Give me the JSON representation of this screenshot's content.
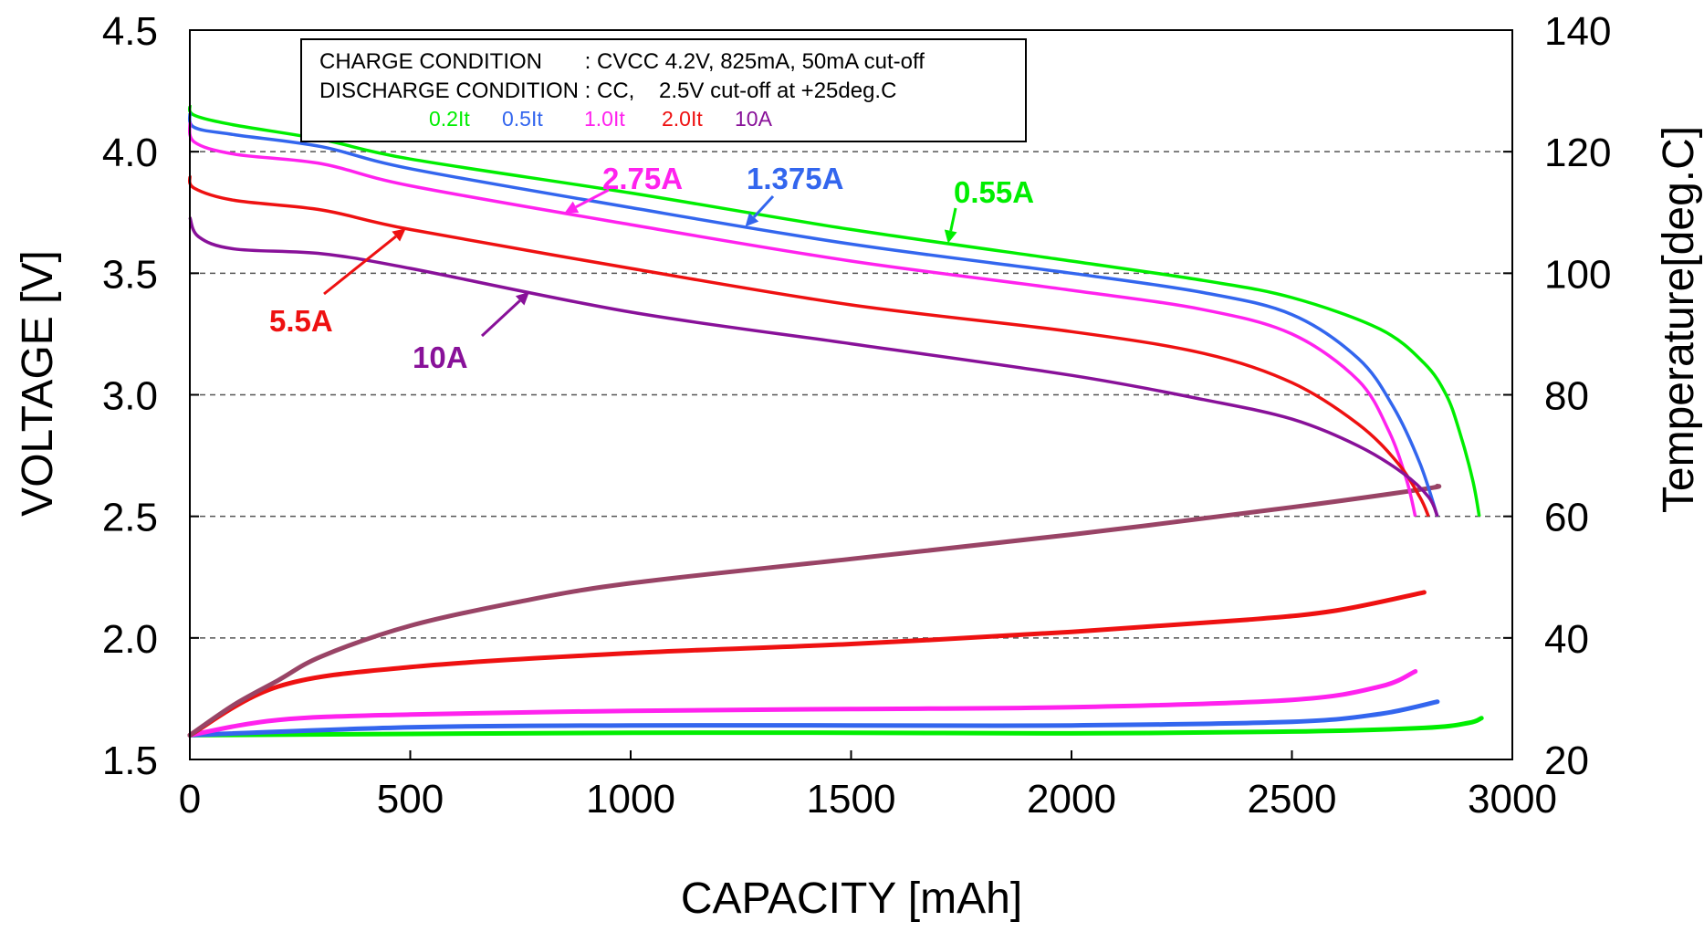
{
  "chart_data": {
    "type": "line",
    "xlabel": "CAPACITY [mAh]",
    "ylabel": "VOLTAGE [V]",
    "y2label": "Temperature[deg.C]",
    "xlim": [
      0,
      3000
    ],
    "ylim": [
      1.5,
      4.5
    ],
    "y2lim": [
      20,
      140
    ],
    "xticks": [
      "0",
      "500",
      "1000",
      "1500",
      "2000",
      "2500",
      "3000"
    ],
    "yticks": [
      "1.5",
      "2.0",
      "2.5",
      "3.0",
      "3.5",
      "4.0",
      "4.5"
    ],
    "y2ticks": [
      "20",
      "40",
      "60",
      "80",
      "100",
      "120",
      "140"
    ],
    "grid": "horizontal dashed",
    "note": {
      "line1": "CHARGE CONDITION       : CVCC 4.2V, 825mA, 50mA cut-off",
      "line2": "DISCHARGE CONDITION : CC,    2.5V cut-off at +25deg.C"
    },
    "legend_placement": "top-left",
    "legend": [
      "0.2It",
      "0.5It",
      "1.0It",
      "2.0It",
      "10A"
    ],
    "annotations": [
      "0.55A",
      "1.375A",
      "2.75A",
      "5.5A",
      "10A"
    ],
    "series": [
      {
        "name": "0.2It",
        "annotation": "0.55A",
        "color": "#00ee00",
        "voltage": [
          [
            0,
            4.19
          ],
          [
            10,
            4.15
          ],
          [
            100,
            4.11
          ],
          [
            300,
            4.05
          ],
          [
            500,
            3.97
          ],
          [
            1000,
            3.83
          ],
          [
            1500,
            3.68
          ],
          [
            2000,
            3.55
          ],
          [
            2300,
            3.47
          ],
          [
            2500,
            3.4
          ],
          [
            2700,
            3.27
          ],
          [
            2800,
            3.13
          ],
          [
            2850,
            3.0
          ],
          [
            2880,
            2.85
          ],
          [
            2910,
            2.65
          ],
          [
            2925,
            2.5
          ]
        ],
        "temperature": [
          [
            0,
            24
          ],
          [
            500,
            24.2
          ],
          [
            1000,
            24.4
          ],
          [
            1500,
            24.4
          ],
          [
            2000,
            24.3
          ],
          [
            2500,
            24.6
          ],
          [
            2800,
            25.2
          ],
          [
            2900,
            26
          ],
          [
            2930,
            26.8
          ]
        ]
      },
      {
        "name": "0.5It",
        "annotation": "1.375A",
        "color": "#3366ee",
        "voltage": [
          [
            0,
            4.16
          ],
          [
            10,
            4.1
          ],
          [
            100,
            4.07
          ],
          [
            300,
            4.02
          ],
          [
            500,
            3.93
          ],
          [
            1000,
            3.77
          ],
          [
            1500,
            3.62
          ],
          [
            2000,
            3.5
          ],
          [
            2300,
            3.42
          ],
          [
            2500,
            3.33
          ],
          [
            2650,
            3.15
          ],
          [
            2730,
            2.95
          ],
          [
            2790,
            2.72
          ],
          [
            2830,
            2.5
          ]
        ],
        "temperature": [
          [
            0,
            24
          ],
          [
            500,
            25.3
          ],
          [
            1000,
            25.6
          ],
          [
            1500,
            25.6
          ],
          [
            2000,
            25.6
          ],
          [
            2500,
            26.2
          ],
          [
            2700,
            27.5
          ],
          [
            2830,
            29.5
          ]
        ]
      },
      {
        "name": "1.0It",
        "annotation": "2.75A",
        "color": "#ff22ee",
        "voltage": [
          [
            0,
            4.12
          ],
          [
            10,
            4.04
          ],
          [
            100,
            3.99
          ],
          [
            300,
            3.95
          ],
          [
            500,
            3.86
          ],
          [
            1000,
            3.7
          ],
          [
            1500,
            3.55
          ],
          [
            2000,
            3.43
          ],
          [
            2300,
            3.35
          ],
          [
            2500,
            3.25
          ],
          [
            2650,
            3.06
          ],
          [
            2720,
            2.85
          ],
          [
            2760,
            2.65
          ],
          [
            2780,
            2.5
          ]
        ],
        "temperature": [
          [
            0,
            24
          ],
          [
            200,
            26.5
          ],
          [
            500,
            27.4
          ],
          [
            1000,
            28
          ],
          [
            1500,
            28.3
          ],
          [
            2000,
            28.6
          ],
          [
            2500,
            29.8
          ],
          [
            2700,
            32
          ],
          [
            2780,
            34.5
          ]
        ]
      },
      {
        "name": "2.0It",
        "annotation": "5.5A",
        "color": "#ee1111",
        "voltage": [
          [
            0,
            3.9
          ],
          [
            10,
            3.85
          ],
          [
            100,
            3.8
          ],
          [
            300,
            3.76
          ],
          [
            500,
            3.68
          ],
          [
            1000,
            3.52
          ],
          [
            1500,
            3.37
          ],
          [
            2000,
            3.26
          ],
          [
            2300,
            3.17
          ],
          [
            2500,
            3.05
          ],
          [
            2650,
            2.88
          ],
          [
            2740,
            2.72
          ],
          [
            2790,
            2.58
          ],
          [
            2810,
            2.5
          ]
        ],
        "temperature": [
          [
            0,
            24
          ],
          [
            200,
            32
          ],
          [
            500,
            35.2
          ],
          [
            1000,
            37.5
          ],
          [
            1500,
            39
          ],
          [
            2000,
            41
          ],
          [
            2400,
            43
          ],
          [
            2600,
            44.5
          ],
          [
            2800,
            47.5
          ]
        ]
      },
      {
        "name": "10A",
        "annotation": "10A",
        "color": "#881199",
        "voltage": [
          [
            0,
            3.73
          ],
          [
            20,
            3.65
          ],
          [
            100,
            3.6
          ],
          [
            300,
            3.58
          ],
          [
            500,
            3.52
          ],
          [
            1000,
            3.34
          ],
          [
            1500,
            3.21
          ],
          [
            2000,
            3.08
          ],
          [
            2300,
            2.98
          ],
          [
            2500,
            2.9
          ],
          [
            2650,
            2.79
          ],
          [
            2750,
            2.68
          ],
          [
            2810,
            2.58
          ],
          [
            2830,
            2.5
          ]
        ],
        "temperature": [
          [
            0,
            24
          ],
          [
            100,
            29
          ],
          [
            200,
            33
          ],
          [
            300,
            37
          ],
          [
            500,
            42
          ],
          [
            750,
            46
          ],
          [
            1000,
            49
          ],
          [
            1500,
            53
          ],
          [
            2000,
            57
          ],
          [
            2500,
            61.5
          ],
          [
            2800,
            64.5
          ],
          [
            2830,
            65
          ]
        ]
      }
    ]
  }
}
